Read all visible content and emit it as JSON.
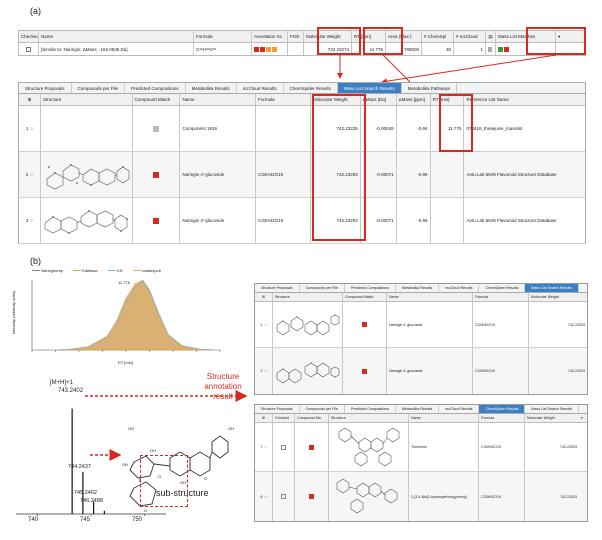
{
  "panel_a_label": "(a)",
  "panel_b_label": "(b)",
  "top_table": {
    "headers": [
      "Checked",
      "Name",
      "Formula",
      "Annotation Sc",
      "FISh",
      "Molecular Weight",
      "RT [min]",
      "Area (Max.)",
      "# ChemSpi",
      "# mzCloud",
      "Mass List Matches"
    ],
    "row": {
      "name": "[Similar to: Naringin; ΔMass: -162.0535 Da]",
      "formula_main": "C",
      "formula_subs": [
        "33",
        "42",
        "O",
        "19"
      ],
      "mw": "742.23274",
      "rt": "11.776",
      "area": "788500",
      "chemspi": "30",
      "mzcloud": "1"
    }
  },
  "results_a": {
    "tabs": [
      "Structure Proposals",
      "Compounds per File",
      "Predicted Compositions",
      "Metabolika Results",
      "mzCloud Results",
      "ChemSpider Results",
      "Mass List Search Results",
      "Metabolika Pathways"
    ],
    "active_tab": "Mass List Search Results",
    "headers": [
      "Structure",
      "Compound Match",
      "Name",
      "Formula",
      "Molecular Weight",
      "ΔMass [Da]",
      "ΔMass [ppm]",
      "RT [min]",
      "Reference List Name"
    ],
    "rows": [
      {
        "idx": "1",
        "name": "Component 1816",
        "formula": "",
        "mw": "742.23225",
        "dmass": "-0.00049",
        "dppm": "-0.66",
        "rt": "11.775",
        "ref": "072618_threejuice_masslist",
        "match": "#bbbbbb"
      },
      {
        "idx": "2",
        "name": "Naringin 4'-glucoside",
        "formula": "C33H42O19",
        "mw": "742.23203",
        "dmass": "-0.00071",
        "dppm": "-0.96",
        "rt": "",
        "ref": "Antu Lab 6549 Flavonoid Structure Database",
        "match": "#d62a20"
      },
      {
        "idx": "3",
        "name": "Naringin 4'-glucoside",
        "formula": "C33H42O19",
        "mw": "742.23203",
        "dmass": "-0.00071",
        "dppm": "-0.96",
        "rt": "",
        "ref": "Antu Lab 6549 Flavonoid Structure Database",
        "match": "#d62a20"
      }
    ]
  },
  "chromatogram": {
    "legend": [
      "Naringenrep",
      "Kalibase",
      "CN",
      "collab4puti"
    ],
    "legend_colors": [
      "#888888",
      "#e8a23a",
      "#7bbbe0",
      "#d4b35a"
    ],
    "ylabel": "Intensity (arbitrary units)",
    "xlabel": "RT [min]",
    "peak_label": "11.776",
    "chart_data": {
      "type": "area",
      "title": "",
      "xlabel": "RT [min]",
      "ylabel": "Intensity",
      "xlim": [
        10.6,
        12.6
      ],
      "ylim": [
        0,
        100
      ],
      "x": [
        10.6,
        10.8,
        11.0,
        11.2,
        11.4,
        11.5,
        11.6,
        11.7,
        11.776,
        11.85,
        11.95,
        12.05,
        12.2,
        12.4,
        12.6
      ],
      "series": [
        {
          "name": "Naringenrep",
          "values": [
            0,
            0,
            1,
            4,
            18,
            38,
            70,
            92,
            100,
            86,
            52,
            22,
            6,
            1,
            0
          ]
        },
        {
          "name": "Kalibase",
          "values": [
            0,
            0,
            1,
            5,
            20,
            42,
            74,
            95,
            99,
            84,
            48,
            20,
            5,
            1,
            0
          ]
        }
      ]
    }
  },
  "spectrum": {
    "ion_label": "[M+H]+1",
    "peaks": [
      {
        "mz": 743.2402,
        "rel": 100,
        "label": "743.2402"
      },
      {
        "mz": 744.2437,
        "rel": 40,
        "label": "744.2437"
      },
      {
        "mz": 745.2462,
        "rel": 12,
        "label": "745.2462"
      },
      {
        "mz": 746.2488,
        "rel": 3,
        "label": "746.2488"
      }
    ],
    "xticks": [
      "740",
      "745",
      "750"
    ],
    "chart_data": {
      "type": "bar",
      "x": [
        743.2402,
        744.2437,
        745.2462,
        746.2488
      ],
      "values": [
        100,
        40,
        12,
        3
      ],
      "xlim": [
        738,
        752
      ],
      "ylim": [
        0,
        110
      ]
    }
  },
  "annotation_text": [
    "Structure",
    "annotation",
    "result"
  ],
  "substructure_label": "sub-structure",
  "mol_labels": [
    "OH",
    "OH",
    "OH",
    "O",
    "O",
    "OH",
    "OH",
    "O"
  ],
  "results_b1": {
    "tabs": [
      "Structure Proposals",
      "Compounds per File",
      "Predicted Compositions",
      "Metabolika Results",
      "mzCloud Results",
      "ChemSpider Results",
      "Mass List Search Results"
    ],
    "active_tab": "Mass List Search Results",
    "headers": [
      "Structure",
      "Compound Match",
      "Name",
      "Formula",
      "Molecular Weight"
    ],
    "rows": [
      {
        "idx": "1",
        "name": "Naringin 4'-glucoside",
        "formula": "C33H42O19",
        "mw": "742.23203"
      },
      {
        "idx": "2",
        "name": "Naringin 4'-glucoside",
        "formula": "C33H42O19",
        "mw": "742.23203"
      }
    ]
  },
  "results_b2": {
    "tabs": [
      "Structure Proposals",
      "Compounds per File",
      "Predicted Compositions",
      "Metabolika Results",
      "mzCloud Results",
      "ChemSpider Results",
      "Mass List Search Results"
    ],
    "active_tab": "ChemSpider Results",
    "headers": [
      "Checked",
      "Compound Ma",
      "Structure",
      "Name",
      "Formula",
      "Molecular Weight"
    ],
    "rows": [
      {
        "idx": "7",
        "name": "Troxerutin",
        "formula": "C33H42O19",
        "mw": "742.23203"
      },
      {
        "idx": "8",
        "name": "2-(3,4-Bis(2-hydroxyethoxy)phenyl)",
        "formula": "C33H42O19",
        "mw": "742.23203"
      }
    ]
  }
}
